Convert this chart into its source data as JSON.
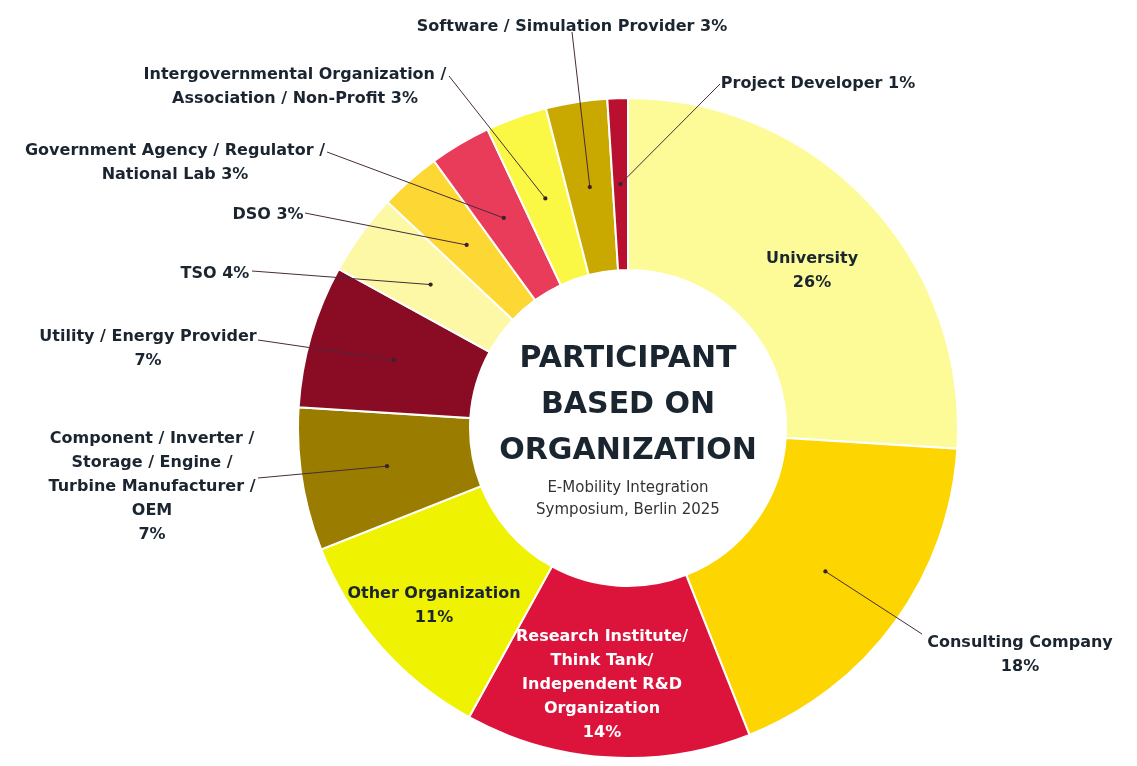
{
  "chart_data": {
    "type": "donut",
    "title": "PARTICIPANT BASED ON ORGANIZATION",
    "subtitle": "E-Mobility Integration Symposium, Berlin 2025",
    "categories": [
      "University",
      "Consulting Company",
      "Research Institute/ Think Tank/ Independent R&D Organization",
      "Other Organization",
      "Component / Inverter / Storage / Engine / Turbine Manufacturer / OEM",
      "Utility / Energy Provider",
      "TSO",
      "DSO",
      "Government Agency / Regulator / National Lab",
      "Intergovernmental Organization / Association / Non-Profit",
      "Software / Simulation Provider",
      "Project Developer"
    ],
    "values": [
      26,
      18,
      14,
      11,
      7,
      7,
      4,
      3,
      3,
      3,
      3,
      1
    ],
    "value_labels": [
      "26%",
      "18%",
      "14%",
      "11%",
      "7%",
      "7%",
      "4%",
      "3%",
      "3%",
      "3%",
      "3%",
      "1%"
    ],
    "colors": [
      "#fdfb98",
      "#fdd500",
      "#dc143c",
      "#eff200",
      "#9a7d00",
      "#8a0c24",
      "#fdf8a6",
      "#fdd835",
      "#e83c5a",
      "#fbf845",
      "#c9a800",
      "#b8102e"
    ]
  }
}
